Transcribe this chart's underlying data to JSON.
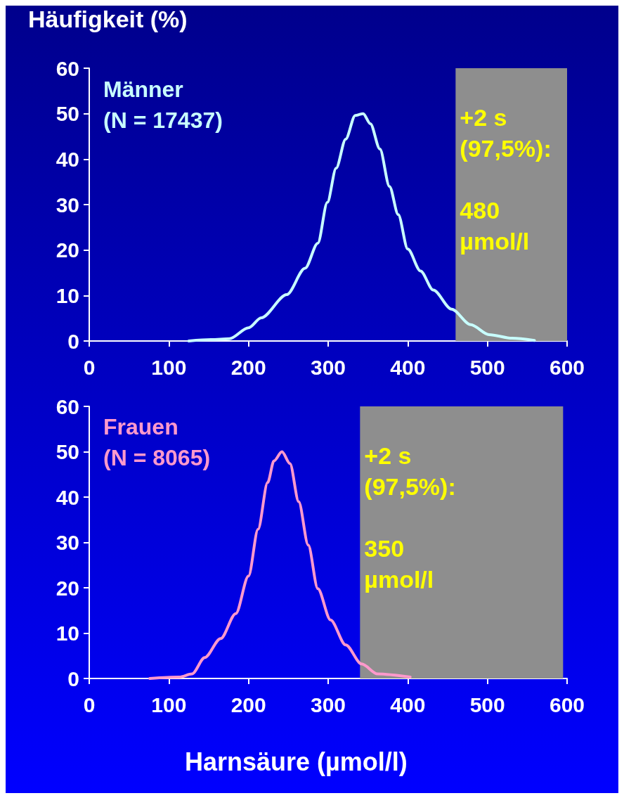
{
  "chart_data": [
    {
      "type": "line",
      "ylabel": "Häufigkeit (%)",
      "xlim": [
        0,
        600
      ],
      "ylim": [
        0,
        60
      ],
      "xticks": [
        0,
        100,
        200,
        300,
        400,
        500,
        600
      ],
      "yticks": [
        0,
        10,
        20,
        30,
        40,
        50,
        60
      ],
      "grid": false,
      "legend": false,
      "marker": "none",
      "line_style": "solid",
      "series": [
        {
          "name": "Männer\n(N = 17437)",
          "color": "#c8ffff",
          "x": [
            125,
            153,
            176,
            200,
            216,
            248,
            271,
            287,
            299,
            310,
            322,
            334,
            344,
            353,
            365,
            377,
            388,
            400,
            416,
            432,
            455,
            479,
            502,
            531,
            559
          ],
          "values": [
            0,
            0.3,
            0.5,
            2.9,
            5.1,
            10.2,
            16,
            21.5,
            30.5,
            38,
            44.4,
            49.6,
            50,
            47.8,
            42.2,
            34,
            27.8,
            20.2,
            15.4,
            11.2,
            7,
            3.6,
            1.4,
            0.6,
            0.1
          ]
        }
      ],
      "bands": [
        {
          "axis": "x",
          "from": 460,
          "to": 600,
          "color": "#8e8e8e",
          "label": "+2 s\n(97,5%):\n\n480\nµmol/l"
        }
      ]
    },
    {
      "type": "line",
      "xlabel": "Harnsäure (µmol/l)",
      "xlim": [
        0,
        600
      ],
      "ylim": [
        0,
        60
      ],
      "xticks": [
        0,
        100,
        200,
        300,
        400,
        500,
        600
      ],
      "yticks": [
        0,
        10,
        20,
        30,
        40,
        50,
        60
      ],
      "grid": false,
      "legend": false,
      "marker": "none",
      "line_style": "solid",
      "series": [
        {
          "name": "Frauen\n(N = 8065)",
          "color": "#ff99cc",
          "x": [
            76,
            113,
            129,
            145,
            165,
            184,
            200,
            212,
            224,
            232,
            242,
            252,
            263,
            275,
            287,
            303,
            322,
            342,
            362,
            403
          ],
          "values": [
            0,
            0.3,
            1,
            4.6,
            8.8,
            14.3,
            22.6,
            32.9,
            43.2,
            48,
            50,
            47.4,
            39,
            29.4,
            19.8,
            12.9,
            7.4,
            3.2,
            1,
            0.3
          ]
        }
      ],
      "bands": [
        {
          "axis": "x",
          "from": 340,
          "to": 595,
          "color": "#8e8e8e",
          "label": "+2 s\n(97,5%):\n\n350\nµmol/l"
        }
      ]
    }
  ]
}
